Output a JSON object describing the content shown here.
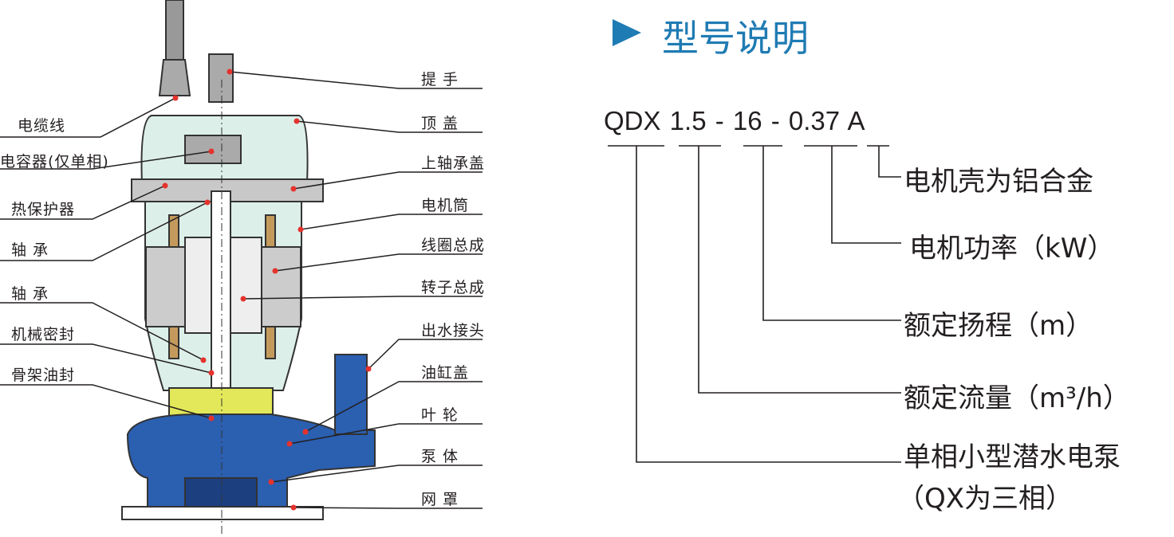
{
  "colors": {
    "accent": "#1f7bb3",
    "pump_blue": "#2b5fb0",
    "motor_fill": "#dcefe9",
    "leader_dot": "#e5322d"
  },
  "title": {
    "icon": "play-triangle-icon",
    "text": "型号说明"
  },
  "model": {
    "code": "QDX 1.5 - 16 - 0.37 A"
  },
  "model_parts": [
    {
      "label": "电机壳为铝合金"
    },
    {
      "label": "电机功率（kW）"
    },
    {
      "label": "额定扬程（m）"
    },
    {
      "label": "额定流量（m³/h）"
    },
    {
      "label": "单相小型潜水电泵",
      "sub": "（QX为三相）"
    }
  ],
  "left_labels": [
    "电缆线",
    "电容器(仅单相)",
    "热保护器",
    "轴 承",
    "轴 承",
    "机械密封",
    "骨架油封"
  ],
  "right_labels": [
    "提 手",
    "顶 盖",
    "上轴承盖",
    "电机筒",
    "线圈总成",
    "转子总成",
    "出水接头",
    "油缸盖",
    "叶 轮",
    "泵 体",
    "网 罩"
  ]
}
